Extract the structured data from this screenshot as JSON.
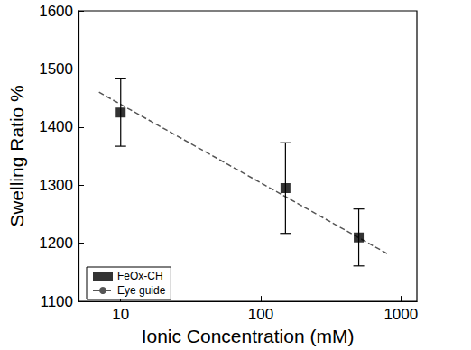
{
  "chart_data": {
    "type": "scatter",
    "x_label": "Ionic Concentration (mM)",
    "y_label": "Swelling Ratio %",
    "log": "x",
    "grid": false,
    "legend": "lower left",
    "xlim": [
      5,
      1300
    ],
    "xticks": [
      10,
      100,
      1000
    ],
    "ylim": [
      1100,
      1600
    ],
    "yticks": [
      1100,
      1200,
      1300,
      1400,
      1500,
      1600
    ],
    "series": [
      {
        "name": "FeOx-CH",
        "type": "scatter",
        "marker": "square",
        "color": "#000000",
        "x": [
          10,
          150,
          500
        ],
        "values": [
          1425,
          1295,
          1210
        ],
        "errors": [
          58,
          78,
          49
        ]
      },
      {
        "name": "Eye guide",
        "type": "line",
        "line_style": "dashed",
        "color": "#555555",
        "x": [
          7,
          800
        ],
        "values": [
          1460,
          1182
        ]
      }
    ]
  }
}
